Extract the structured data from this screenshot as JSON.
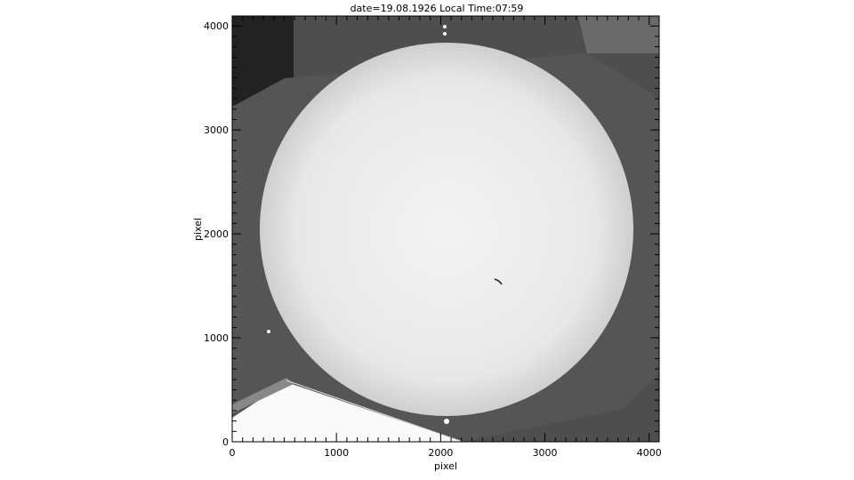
{
  "chart_data": {
    "type": "heatmap",
    "title": "date=19.08.1926 Local Time:07:59",
    "xlabel": "pixel",
    "ylabel": "pixel",
    "xlim": [
      0,
      4096
    ],
    "ylim": [
      0,
      4096
    ],
    "xticks": [
      "0",
      "1000",
      "2000",
      "3000",
      "4000"
    ],
    "yticks": [
      "0",
      "1000",
      "2000",
      "3000",
      "4000"
    ],
    "minor_tick_step": 100,
    "colormap": "grayscale",
    "grid": false
  }
}
